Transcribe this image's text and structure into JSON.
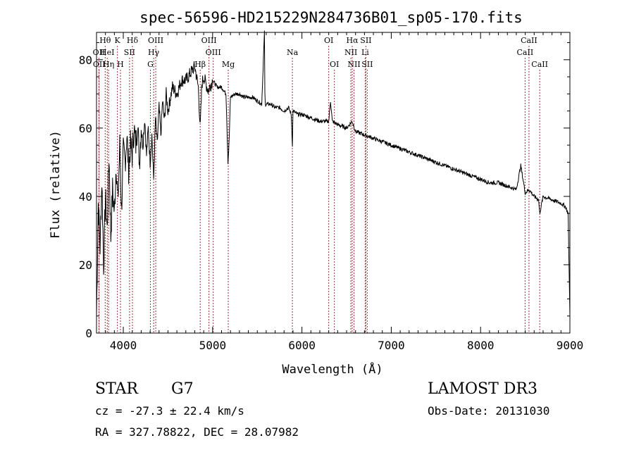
{
  "chart_data": {
    "type": "line",
    "title": "spec-56596-HD215229N284736B01_sp05-170.fits",
    "xlabel": "Wavelength (Å)",
    "ylabel": "Flux (relative)",
    "xlim": [
      3700,
      9000
    ],
    "ylim": [
      0,
      88
    ],
    "xticks": [
      4000,
      5000,
      6000,
      7000,
      8000,
      9000
    ],
    "yticks": [
      0,
      20,
      40,
      60,
      80
    ],
    "series": [
      {
        "name": "spectrum",
        "x": [
          3700,
          3720,
          3740,
          3760,
          3780,
          3800,
          3820,
          3840,
          3860,
          3880,
          3900,
          3920,
          3940,
          3960,
          3980,
          4000,
          4020,
          4040,
          4060,
          4080,
          4100,
          4120,
          4140,
          4160,
          4180,
          4200,
          4220,
          4240,
          4260,
          4280,
          4300,
          4320,
          4340,
          4360,
          4380,
          4400,
          4420,
          4440,
          4460,
          4480,
          4500,
          4550,
          4600,
          4650,
          4700,
          4750,
          4800,
          4840,
          4861,
          4880,
          4900,
          4950,
          5000,
          5050,
          5100,
          5150,
          5172,
          5183,
          5200,
          5250,
          5300,
          5350,
          5400,
          5450,
          5500,
          5550,
          5580,
          5585,
          5590,
          5600,
          5650,
          5700,
          5750,
          5800,
          5850,
          5880,
          5893,
          5900,
          5950,
          6000,
          6100,
          6200,
          6300,
          6320,
          6340,
          6400,
          6500,
          6563,
          6600,
          6700,
          6800,
          6900,
          7000,
          7100,
          7200,
          7300,
          7400,
          7500,
          7600,
          7700,
          7800,
          7900,
          8000,
          8100,
          8200,
          8300,
          8400,
          8450,
          8500,
          8542,
          8600,
          8650,
          8662,
          8700,
          8800,
          8900,
          8950,
          8980,
          9000
        ],
        "values": [
          5,
          38,
          25,
          45,
          20,
          40,
          30,
          52,
          28,
          42,
          35,
          50,
          38,
          55,
          36,
          53,
          50,
          58,
          48,
          55,
          52,
          60,
          55,
          62,
          50,
          60,
          55,
          63,
          52,
          60,
          50,
          58,
          45,
          63,
          55,
          66,
          58,
          68,
          62,
          70,
          65,
          72,
          70,
          74,
          74,
          76,
          78,
          72,
          60,
          73,
          75,
          71,
          74,
          72,
          72,
          70,
          50,
          55,
          69,
          70,
          70,
          69,
          69,
          69,
          68,
          67,
          88,
          70,
          67,
          67,
          67,
          66,
          66,
          65,
          66,
          64,
          55,
          65,
          64,
          64,
          63,
          62,
          62,
          68,
          62,
          61,
          60,
          62,
          59,
          58,
          57,
          56,
          55,
          54,
          53,
          52,
          51,
          50,
          49,
          48,
          47,
          46,
          45,
          44,
          44,
          43,
          42,
          49,
          41,
          42,
          40,
          39,
          35,
          40,
          39,
          38,
          37,
          35,
          5
        ]
      }
    ],
    "lines": [
      {
        "name": "Hθ",
        "wl": 3797,
        "row": 1
      },
      {
        "name": "OII",
        "wl": 3727,
        "row": 2
      },
      {
        "name": "OII",
        "wl": 3729,
        "row": 3
      },
      {
        "name": "HeI",
        "wl": 3820,
        "row": 2
      },
      {
        "name": "Hη",
        "wl": 3835,
        "row": 3
      },
      {
        "name": "K",
        "wl": 3934,
        "row": 1
      },
      {
        "name": "SII",
        "wl": 4070,
        "row": 2
      },
      {
        "name": "Hδ",
        "wl": 4102,
        "row": 1
      },
      {
        "name": "H",
        "wl": 3968,
        "row": 3
      },
      {
        "name": "OIII",
        "wl": 4363,
        "row": 1
      },
      {
        "name": "Hγ",
        "wl": 4340,
        "row": 2
      },
      {
        "name": "G",
        "wl": 4304,
        "row": 3
      },
      {
        "name": "OIII",
        "wl": 4959,
        "row": 1
      },
      {
        "name": "OIII",
        "wl": 5007,
        "row": 2
      },
      {
        "name": "Hβ",
        "wl": 4861,
        "row": 3
      },
      {
        "name": "Mg",
        "wl": 5175,
        "row": 3
      },
      {
        "name": "Na",
        "wl": 5893,
        "row": 2
      },
      {
        "name": "OI",
        "wl": 6300,
        "row": 1
      },
      {
        "name": "OI",
        "wl": 6363,
        "row": 3
      },
      {
        "name": "Hα",
        "wl": 6563,
        "row": 1
      },
      {
        "name": "NII",
        "wl": 6548,
        "row": 2
      },
      {
        "name": "NII",
        "wl": 6583,
        "row": 3
      },
      {
        "name": "SII",
        "wl": 6716,
        "row": 1
      },
      {
        "name": "Li",
        "wl": 6708,
        "row": 2
      },
      {
        "name": "SII",
        "wl": 6731,
        "row": 3
      },
      {
        "name": "CaII",
        "wl": 8542,
        "row": 1
      },
      {
        "name": "CaII",
        "wl": 8498,
        "row": 2
      },
      {
        "name": "CaII",
        "wl": 8662,
        "row": 3
      }
    ]
  },
  "info": {
    "class_label": "STAR",
    "subclass": "G7",
    "survey": "LAMOST DR3",
    "cz": "cz = -27.3 ± 22.4 km/s",
    "obs_date": "Obs-Date: 20131030",
    "coords": "RA = 327.78822, DEC =  28.07982"
  },
  "colors": {
    "line_marker": "#a0302f",
    "spectrum": "#000000"
  }
}
